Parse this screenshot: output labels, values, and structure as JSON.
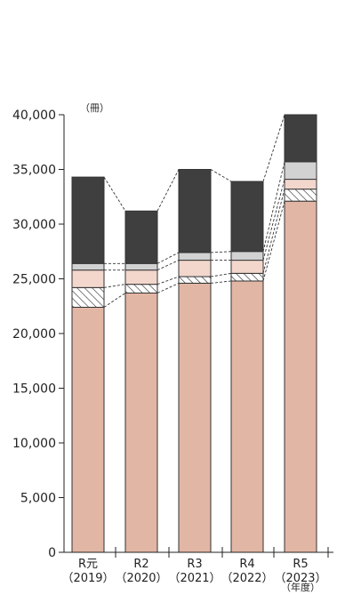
{
  "chart_data": {
    "type": "bar",
    "stacked": true,
    "unit_label": "（冊）",
    "xaxis_unit": "（年度）",
    "categories": [
      {
        "line1": "R元",
        "line2": "（2019）"
      },
      {
        "line1": "R2",
        "line2": "（2020）"
      },
      {
        "line1": "R3",
        "line2": "（2021）"
      },
      {
        "line1": "R4",
        "line2": "（2022）"
      },
      {
        "line1": "R5",
        "line2": "（2023）"
      }
    ],
    "ylim": [
      0,
      40000
    ],
    "yticks": [
      "0",
      "5,000",
      "10,000",
      "15,000",
      "20,000",
      "25,000",
      "30,000",
      "35,000",
      "40,000"
    ],
    "ytick_values": [
      0,
      5000,
      10000,
      15000,
      20000,
      25000,
      30000,
      35000,
      40000
    ],
    "series": [
      {
        "fill": "#e2b6a4",
        "values": [
          22400,
          23700,
          24600,
          24800,
          32100
        ]
      },
      {
        "fill": "hatch",
        "values": [
          1800,
          800,
          600,
          700,
          1100
        ]
      },
      {
        "fill": "#f3d7cc",
        "values": [
          1600,
          1300,
          1500,
          1200,
          900
        ]
      },
      {
        "fill": "#d2d2d2",
        "values": [
          600,
          600,
          700,
          800,
          1600
        ]
      },
      {
        "fill": "#3f3f3f",
        "values": [
          7900,
          4800,
          7600,
          6400,
          4300
        ]
      }
    ],
    "totals": [
      34300,
      31200,
      35000,
      33900,
      40000
    ],
    "grid": false,
    "connector_lines": "dashed"
  }
}
